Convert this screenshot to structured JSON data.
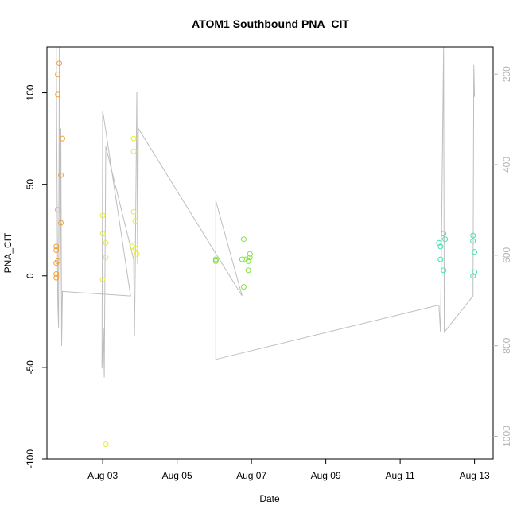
{
  "chart_data": {
    "type": "scatter",
    "title": "ATOM1 Southbound PNA_CIT",
    "xlabel": "Date",
    "ylabel": "PNA_CIT",
    "xlim": [
      "2016-08-01T12:00",
      "2016-08-13T12:00"
    ],
    "ylim": [
      -100,
      125
    ],
    "y2lim": [
      1050,
      140
    ],
    "x_ticks": [
      {
        "value": "2016-08-03T00:00",
        "label": "Aug 03"
      },
      {
        "value": "2016-08-05T00:00",
        "label": "Aug 05"
      },
      {
        "value": "2016-08-07T00:00",
        "label": "Aug 07"
      },
      {
        "value": "2016-08-09T00:00",
        "label": "Aug 09"
      },
      {
        "value": "2016-08-11T00:00",
        "label": "Aug 11"
      },
      {
        "value": "2016-08-13T00:00",
        "label": "Aug 13"
      }
    ],
    "y_ticks": [
      -100,
      -50,
      0,
      50,
      100
    ],
    "y2_ticks": [
      200,
      400,
      600,
      800,
      1000
    ],
    "grid": false,
    "legend": "none",
    "series": [
      {
        "color": "#f5a033",
        "points": [
          {
            "x": "2016-08-01T20:00",
            "y": 116
          },
          {
            "x": "2016-08-01T19:00",
            "y": 110
          },
          {
            "x": "2016-08-01T19:00",
            "y": 99
          },
          {
            "x": "2016-08-01T22:00",
            "y": 75
          },
          {
            "x": "2016-08-01T21:00",
            "y": 55
          },
          {
            "x": "2016-08-01T19:00",
            "y": 36
          },
          {
            "x": "2016-08-01T21:00",
            "y": 29
          },
          {
            "x": "2016-08-01T18:00",
            "y": 16
          },
          {
            "x": "2016-08-01T18:00",
            "y": 14
          },
          {
            "x": "2016-08-01T19:00",
            "y": 8
          },
          {
            "x": "2016-08-01T18:00",
            "y": 7
          },
          {
            "x": "2016-08-01T18:00",
            "y": 1
          },
          {
            "x": "2016-08-01T18:00",
            "y": -1
          }
        ]
      },
      {
        "color": "#e6eb3c",
        "points": [
          {
            "x": "2016-08-03T00:00",
            "y": 33
          },
          {
            "x": "2016-08-03T00:00",
            "y": 23
          },
          {
            "x": "2016-08-03T02:00",
            "y": 18
          },
          {
            "x": "2016-08-03T02:00",
            "y": 10
          },
          {
            "x": "2016-08-03T00:00",
            "y": -2
          },
          {
            "x": "2016-08-03T02:00",
            "y": -92
          },
          {
            "x": "2016-08-03T20:00",
            "y": 75
          },
          {
            "x": "2016-08-03T20:00",
            "y": 68
          },
          {
            "x": "2016-08-03T20:00",
            "y": 35
          },
          {
            "x": "2016-08-03T21:00",
            "y": 30
          },
          {
            "x": "2016-08-03T19:00",
            "y": 16
          },
          {
            "x": "2016-08-03T21:00",
            "y": 15
          },
          {
            "x": "2016-08-03T22:00",
            "y": 12
          }
        ]
      },
      {
        "color": "#7ae52f",
        "points": [
          {
            "x": "2016-08-06T01:00",
            "y": 9
          },
          {
            "x": "2016-08-06T01:00",
            "y": 8
          },
          {
            "x": "2016-08-06T19:00",
            "y": 20
          },
          {
            "x": "2016-08-06T18:00",
            "y": 9
          },
          {
            "x": "2016-08-06T20:00",
            "y": 9
          },
          {
            "x": "2016-08-06T22:00",
            "y": 8
          },
          {
            "x": "2016-08-06T23:00",
            "y": 10
          },
          {
            "x": "2016-08-06T23:00",
            "y": 12
          },
          {
            "x": "2016-08-06T22:00",
            "y": 3
          },
          {
            "x": "2016-08-06T19:00",
            "y": -6
          }
        ]
      },
      {
        "color": "#3ce6b4",
        "points": [
          {
            "x": "2016-08-12T01:00",
            "y": 18
          },
          {
            "x": "2016-08-12T02:00",
            "y": 16
          },
          {
            "x": "2016-08-12T04:00",
            "y": 23
          },
          {
            "x": "2016-08-12T05:00",
            "y": 20
          },
          {
            "x": "2016-08-12T02:00",
            "y": 9
          },
          {
            "x": "2016-08-12T04:00",
            "y": 3
          },
          {
            "x": "2016-08-12T23:00",
            "y": 22
          },
          {
            "x": "2016-08-12T23:00",
            "y": 19
          },
          {
            "x": "2016-08-13T00:00",
            "y": 13
          },
          {
            "x": "2016-08-13T00:00",
            "y": 2
          },
          {
            "x": "2016-08-12T23:00",
            "y": 0
          }
        ]
      }
    ],
    "line_series": {
      "axis": "right",
      "color": "#bebebe",
      "points": [
        {
          "x": "2016-08-01T18:00",
          "y": 140
        },
        {
          "x": "2016-08-01T19:00",
          "y": 700
        },
        {
          "x": "2016-08-01T19:30",
          "y": 760
        },
        {
          "x": "2016-08-01T20:00",
          "y": 140
        },
        {
          "x": "2016-08-01T20:30",
          "y": 680
        },
        {
          "x": "2016-08-01T21:00",
          "y": 320
        },
        {
          "x": "2016-08-01T21:30",
          "y": 800
        },
        {
          "x": "2016-08-01T22:00",
          "y": 680
        },
        {
          "x": "2016-08-03T18:00",
          "y": 690
        },
        {
          "x": "2016-08-03T00:00",
          "y": 280
        },
        {
          "x": "2016-08-02T23:30",
          "y": 850
        },
        {
          "x": "2016-08-03T00:30",
          "y": 760
        },
        {
          "x": "2016-08-03T01:00",
          "y": 870
        },
        {
          "x": "2016-08-03T02:00",
          "y": 360
        },
        {
          "x": "2016-08-03T20:00",
          "y": 610
        },
        {
          "x": "2016-08-03T20:30",
          "y": 780
        },
        {
          "x": "2016-08-03T21:00",
          "y": 640
        },
        {
          "x": "2016-08-03T22:00",
          "y": 240
        },
        {
          "x": "2016-08-03T22:30",
          "y": 620
        },
        {
          "x": "2016-08-03T23:00",
          "y": 320
        },
        {
          "x": "2016-08-06T18:00",
          "y": 690
        },
        {
          "x": "2016-08-06T01:00",
          "y": 480
        },
        {
          "x": "2016-08-06T01:00",
          "y": 830
        },
        {
          "x": "2016-08-12T01:00",
          "y": 710
        },
        {
          "x": "2016-08-12T02:00",
          "y": 770
        },
        {
          "x": "2016-08-12T04:00",
          "y": 140
        },
        {
          "x": "2016-08-12T04:30",
          "y": 770
        },
        {
          "x": "2016-08-12T23:00",
          "y": 690
        },
        {
          "x": "2016-08-12T23:30",
          "y": 180
        },
        {
          "x": "2016-08-13T00:00",
          "y": 250
        }
      ]
    }
  }
}
